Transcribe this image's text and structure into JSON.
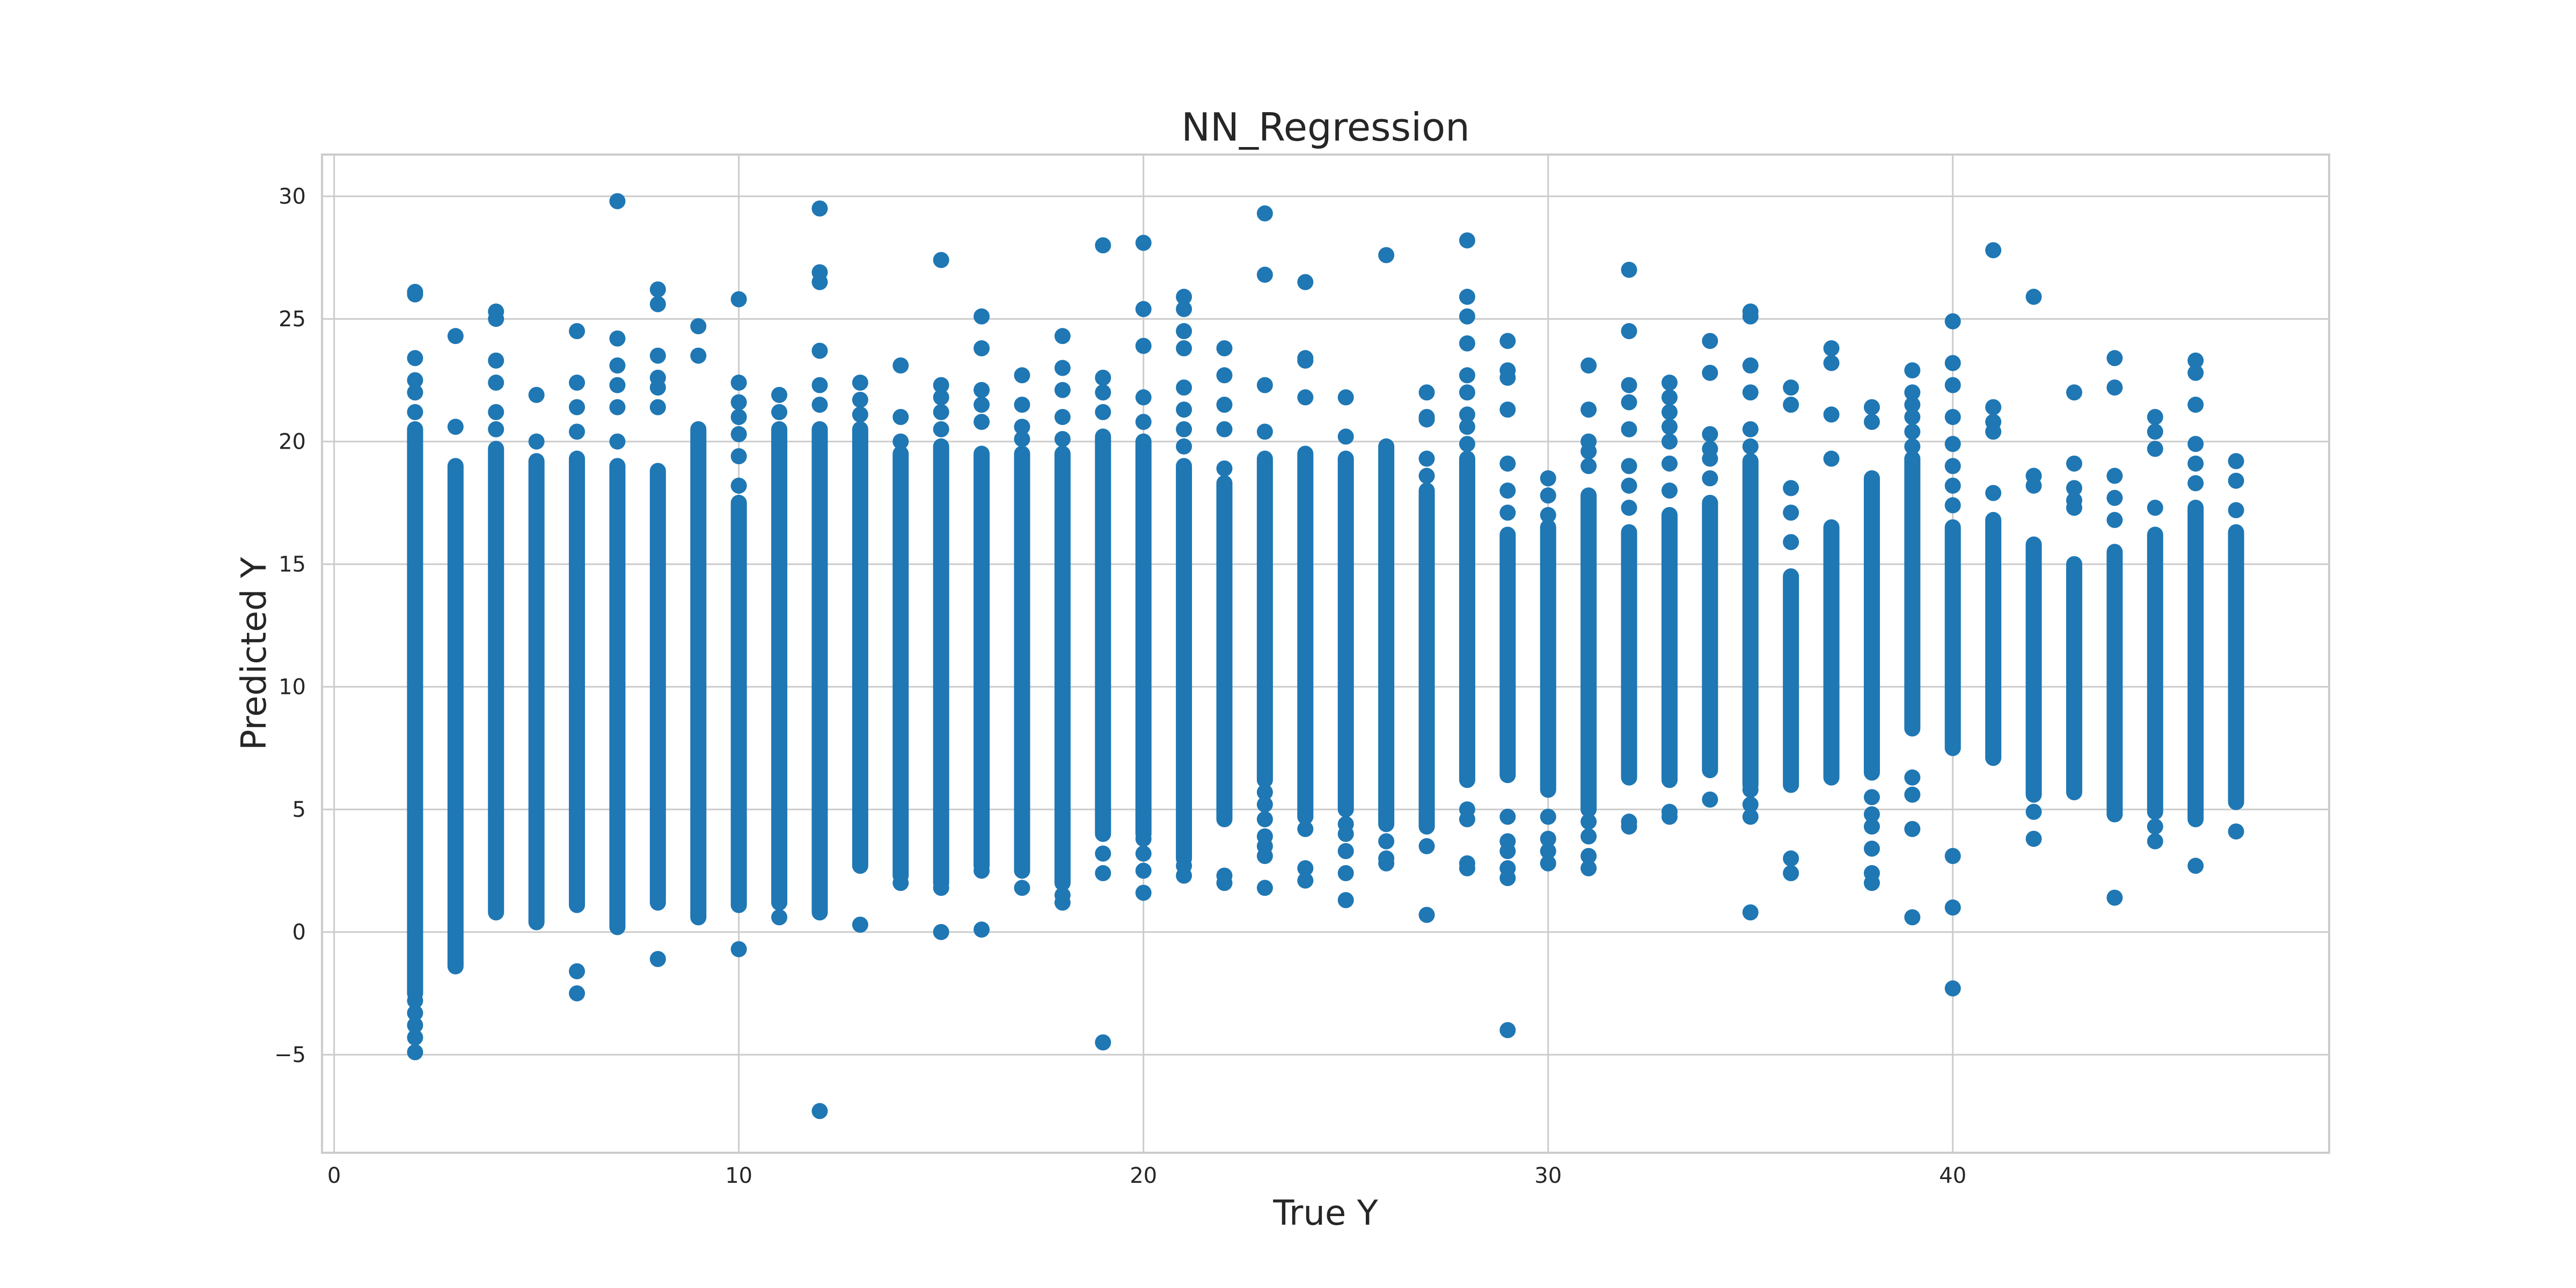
{
  "chart_data": {
    "type": "scatter",
    "title": "NN_Regression",
    "xlabel": "True Y",
    "ylabel": "Predicted Y",
    "xlim": [
      -0.3,
      49.3
    ],
    "ylim": [
      -9,
      31.7
    ],
    "xticks": [
      0,
      10,
      20,
      30,
      40
    ],
    "xtick_labels": [
      "0",
      "10",
      "20",
      "30",
      "40"
    ],
    "yticks": [
      -5,
      0,
      5,
      10,
      15,
      20,
      25,
      30
    ],
    "ytick_labels": [
      "−5",
      "0",
      "5",
      "10",
      "15",
      "20",
      "25",
      "30"
    ],
    "grid": true,
    "legend": "none",
    "point_color": "#1f77b4",
    "series": [
      {
        "columns": [
          {
            "x": 2,
            "dense_range": [
              -2.5,
              20.5
            ],
            "points": [
              -4.9,
              -4.3,
              -3.8,
              -3.3,
              -2.8,
              21.2,
              22.0,
              22.5,
              23.4,
              26.0,
              26.1
            ]
          },
          {
            "x": 3,
            "dense_range": [
              -1.4,
              19.0
            ],
            "points": [
              20.6,
              24.3
            ]
          },
          {
            "x": 4,
            "dense_range": [
              0.8,
              19.7
            ],
            "points": [
              20.5,
              21.2,
              22.4,
              23.3,
              25.0,
              25.3
            ]
          },
          {
            "x": 5,
            "dense_range": [
              0.4,
              19.2
            ],
            "points": [
              20.0,
              21.9
            ]
          },
          {
            "x": 6,
            "dense_range": [
              1.1,
              19.3
            ],
            "points": [
              -2.5,
              -1.6,
              20.4,
              21.4,
              22.4,
              24.5
            ]
          },
          {
            "x": 7,
            "dense_range": [
              0.2,
              19.0
            ],
            "points": [
              20.0,
              21.4,
              22.3,
              23.1,
              24.2,
              29.8
            ]
          },
          {
            "x": 8,
            "dense_range": [
              1.2,
              18.8
            ],
            "points": [
              -1.1,
              21.4,
              22.2,
              22.6,
              23.5,
              25.6,
              26.2
            ]
          },
          {
            "x": 9,
            "dense_range": [
              0.6,
              20.5
            ],
            "points": [
              23.5,
              24.7
            ]
          },
          {
            "x": 10,
            "dense_range": [
              1.1,
              17.5
            ],
            "points": [
              -0.7,
              18.2,
              19.4,
              20.3,
              21.0,
              21.6,
              22.4,
              25.8
            ]
          },
          {
            "x": 11,
            "dense_range": [
              1.2,
              20.5
            ],
            "points": [
              0.6,
              21.2,
              21.9
            ]
          },
          {
            "x": 12,
            "dense_range": [
              0.8,
              20.5
            ],
            "points": [
              -7.3,
              21.5,
              22.3,
              23.7,
              26.5,
              26.9,
              29.5
            ]
          },
          {
            "x": 13,
            "dense_range": [
              2.7,
              20.5
            ],
            "points": [
              0.3,
              21.1,
              21.7,
              22.4
            ]
          },
          {
            "x": 14,
            "dense_range": [
              2.3,
              19.5
            ],
            "points": [
              2.0,
              20.0,
              21.0,
              23.1
            ]
          },
          {
            "x": 15,
            "dense_range": [
              2.0,
              19.8
            ],
            "points": [
              0.0,
              1.8,
              20.5,
              21.2,
              21.8,
              22.3,
              27.4
            ]
          },
          {
            "x": 16,
            "dense_range": [
              2.7,
              19.5
            ],
            "points": [
              0.1,
              2.5,
              20.8,
              21.5,
              22.1,
              23.8,
              25.1
            ]
          },
          {
            "x": 17,
            "dense_range": [
              2.5,
              19.5
            ],
            "points": [
              1.8,
              20.1,
              20.6,
              21.5,
              22.7
            ]
          },
          {
            "x": 18,
            "dense_range": [
              2.0,
              19.5
            ],
            "points": [
              1.2,
              1.5,
              20.1,
              21.0,
              22.1,
              23.0,
              24.3
            ]
          },
          {
            "x": 19,
            "dense_range": [
              4.0,
              20.2
            ],
            "points": [
              -4.5,
              2.4,
              3.2,
              21.2,
              22.0,
              22.6,
              28.0
            ]
          },
          {
            "x": 20,
            "dense_range": [
              4.0,
              20.0
            ],
            "points": [
              1.6,
              2.5,
              3.2,
              3.8,
              20.8,
              21.8,
              23.9,
              25.4,
              28.1
            ]
          },
          {
            "x": 21,
            "dense_range": [
              3.0,
              19.0
            ],
            "points": [
              2.3,
              2.7,
              19.8,
              20.5,
              21.3,
              22.2,
              23.8,
              24.5,
              25.4,
              25.9
            ]
          },
          {
            "x": 22,
            "dense_range": [
              4.6,
              18.3
            ],
            "points": [
              2.0,
              2.3,
              18.9,
              20.5,
              21.5,
              22.7,
              23.8
            ]
          },
          {
            "x": 23,
            "dense_range": [
              6.2,
              19.3
            ],
            "points": [
              1.8,
              3.1,
              3.5,
              3.9,
              4.6,
              5.2,
              5.7,
              20.4,
              22.3,
              26.8,
              29.3
            ]
          },
          {
            "x": 24,
            "dense_range": [
              4.7,
              19.5
            ],
            "points": [
              2.1,
              2.6,
              4.2,
              21.8,
              23.3,
              23.4,
              26.5
            ]
          },
          {
            "x": 25,
            "dense_range": [
              5.0,
              19.3
            ],
            "points": [
              1.3,
              2.4,
              3.3,
              4.0,
              4.4,
              20.2,
              21.8
            ]
          },
          {
            "x": 26,
            "dense_range": [
              4.4,
              19.8
            ],
            "points": [
              2.8,
              3.0,
              3.7,
              27.6
            ]
          },
          {
            "x": 27,
            "dense_range": [
              4.3,
              18.0
            ],
            "points": [
              0.7,
              3.5,
              18.6,
              19.3,
              20.9,
              21.0,
              22.0
            ]
          },
          {
            "x": 28,
            "dense_range": [
              6.2,
              19.3
            ],
            "points": [
              2.6,
              2.8,
              4.6,
              5.0,
              19.9,
              20.6,
              21.1,
              22.0,
              22.7,
              24.0,
              25.1,
              25.9,
              28.2
            ]
          },
          {
            "x": 29,
            "dense_range": [
              6.4,
              16.2
            ],
            "points": [
              -4.0,
              2.2,
              2.6,
              3.3,
              3.7,
              4.7,
              17.1,
              18.0,
              19.1,
              21.3,
              22.6,
              22.9,
              24.1
            ]
          },
          {
            "x": 30,
            "dense_range": [
              5.8,
              16.5
            ],
            "points": [
              2.8,
              3.3,
              3.8,
              4.7,
              17.0,
              17.8,
              18.5
            ]
          },
          {
            "x": 31,
            "dense_range": [
              5.0,
              17.8
            ],
            "points": [
              2.6,
              3.1,
              3.9,
              4.5,
              19.0,
              19.6,
              20.0,
              21.3,
              23.1
            ]
          },
          {
            "x": 32,
            "dense_range": [
              6.3,
              16.3
            ],
            "points": [
              4.3,
              4.5,
              17.3,
              18.2,
              19.0,
              20.5,
              21.6,
              22.3,
              24.5,
              27.0
            ]
          },
          {
            "x": 33,
            "dense_range": [
              6.2,
              17.0
            ],
            "points": [
              4.7,
              4.9,
              18.0,
              19.1,
              20.0,
              20.6,
              21.2,
              21.8,
              22.4
            ]
          },
          {
            "x": 34,
            "dense_range": [
              6.6,
              17.5
            ],
            "points": [
              5.4,
              18.5,
              19.3,
              19.7,
              20.3,
              22.8,
              24.1
            ]
          },
          {
            "x": 35,
            "dense_range": [
              6.0,
              19.2
            ],
            "points": [
              0.8,
              4.7,
              5.2,
              5.8,
              19.8,
              20.5,
              22.0,
              23.1,
              25.1,
              25.3
            ]
          },
          {
            "x": 36,
            "dense_range": [
              6.0,
              14.5
            ],
            "points": [
              2.4,
              3.0,
              15.9,
              17.1,
              18.1,
              21.5,
              22.2
            ]
          },
          {
            "x": 37,
            "dense_range": [
              6.3,
              16.5
            ],
            "points": [
              19.3,
              21.1,
              23.2,
              23.8
            ]
          },
          {
            "x": 38,
            "dense_range": [
              6.5,
              18.5
            ],
            "points": [
              2.0,
              2.4,
              3.4,
              4.3,
              4.8,
              5.5,
              20.8,
              21.4
            ]
          },
          {
            "x": 39,
            "dense_range": [
              8.3,
              19.3
            ],
            "points": [
              0.6,
              4.2,
              5.6,
              6.3,
              19.8,
              20.4,
              21.0,
              21.5,
              22.0,
              22.9
            ]
          },
          {
            "x": 40,
            "dense_range": [
              7.5,
              16.5
            ],
            "points": [
              -2.3,
              1.0,
              3.1,
              17.4,
              18.2,
              19.0,
              19.9,
              21.0,
              22.3,
              23.2,
              24.9
            ]
          },
          {
            "x": 41,
            "dense_range": [
              7.1,
              16.8
            ],
            "points": [
              17.9,
              20.4,
              20.8,
              21.4,
              27.8
            ]
          },
          {
            "x": 42,
            "dense_range": [
              5.6,
              15.8
            ],
            "points": [
              3.8,
              4.9,
              18.2,
              18.6,
              25.9
            ]
          },
          {
            "x": 43,
            "dense_range": [
              5.7,
              15.0
            ],
            "points": [
              17.3,
              17.6,
              18.1,
              19.1,
              22.0
            ]
          },
          {
            "x": 44,
            "dense_range": [
              4.8,
              15.5
            ],
            "points": [
              1.4,
              16.8,
              17.7,
              18.6,
              22.2,
              23.4
            ]
          },
          {
            "x": 45,
            "dense_range": [
              4.9,
              16.2
            ],
            "points": [
              3.7,
              4.3,
              17.3,
              19.7,
              20.4,
              21.0
            ]
          },
          {
            "x": 46,
            "dense_range": [
              4.6,
              17.3
            ],
            "points": [
              2.7,
              18.3,
              19.1,
              19.9,
              21.5,
              22.8,
              23.3
            ]
          },
          {
            "x": 47,
            "dense_range": [
              5.3,
              16.3
            ],
            "points": [
              4.1,
              17.2,
              18.4,
              19.2
            ]
          }
        ]
      }
    ]
  }
}
